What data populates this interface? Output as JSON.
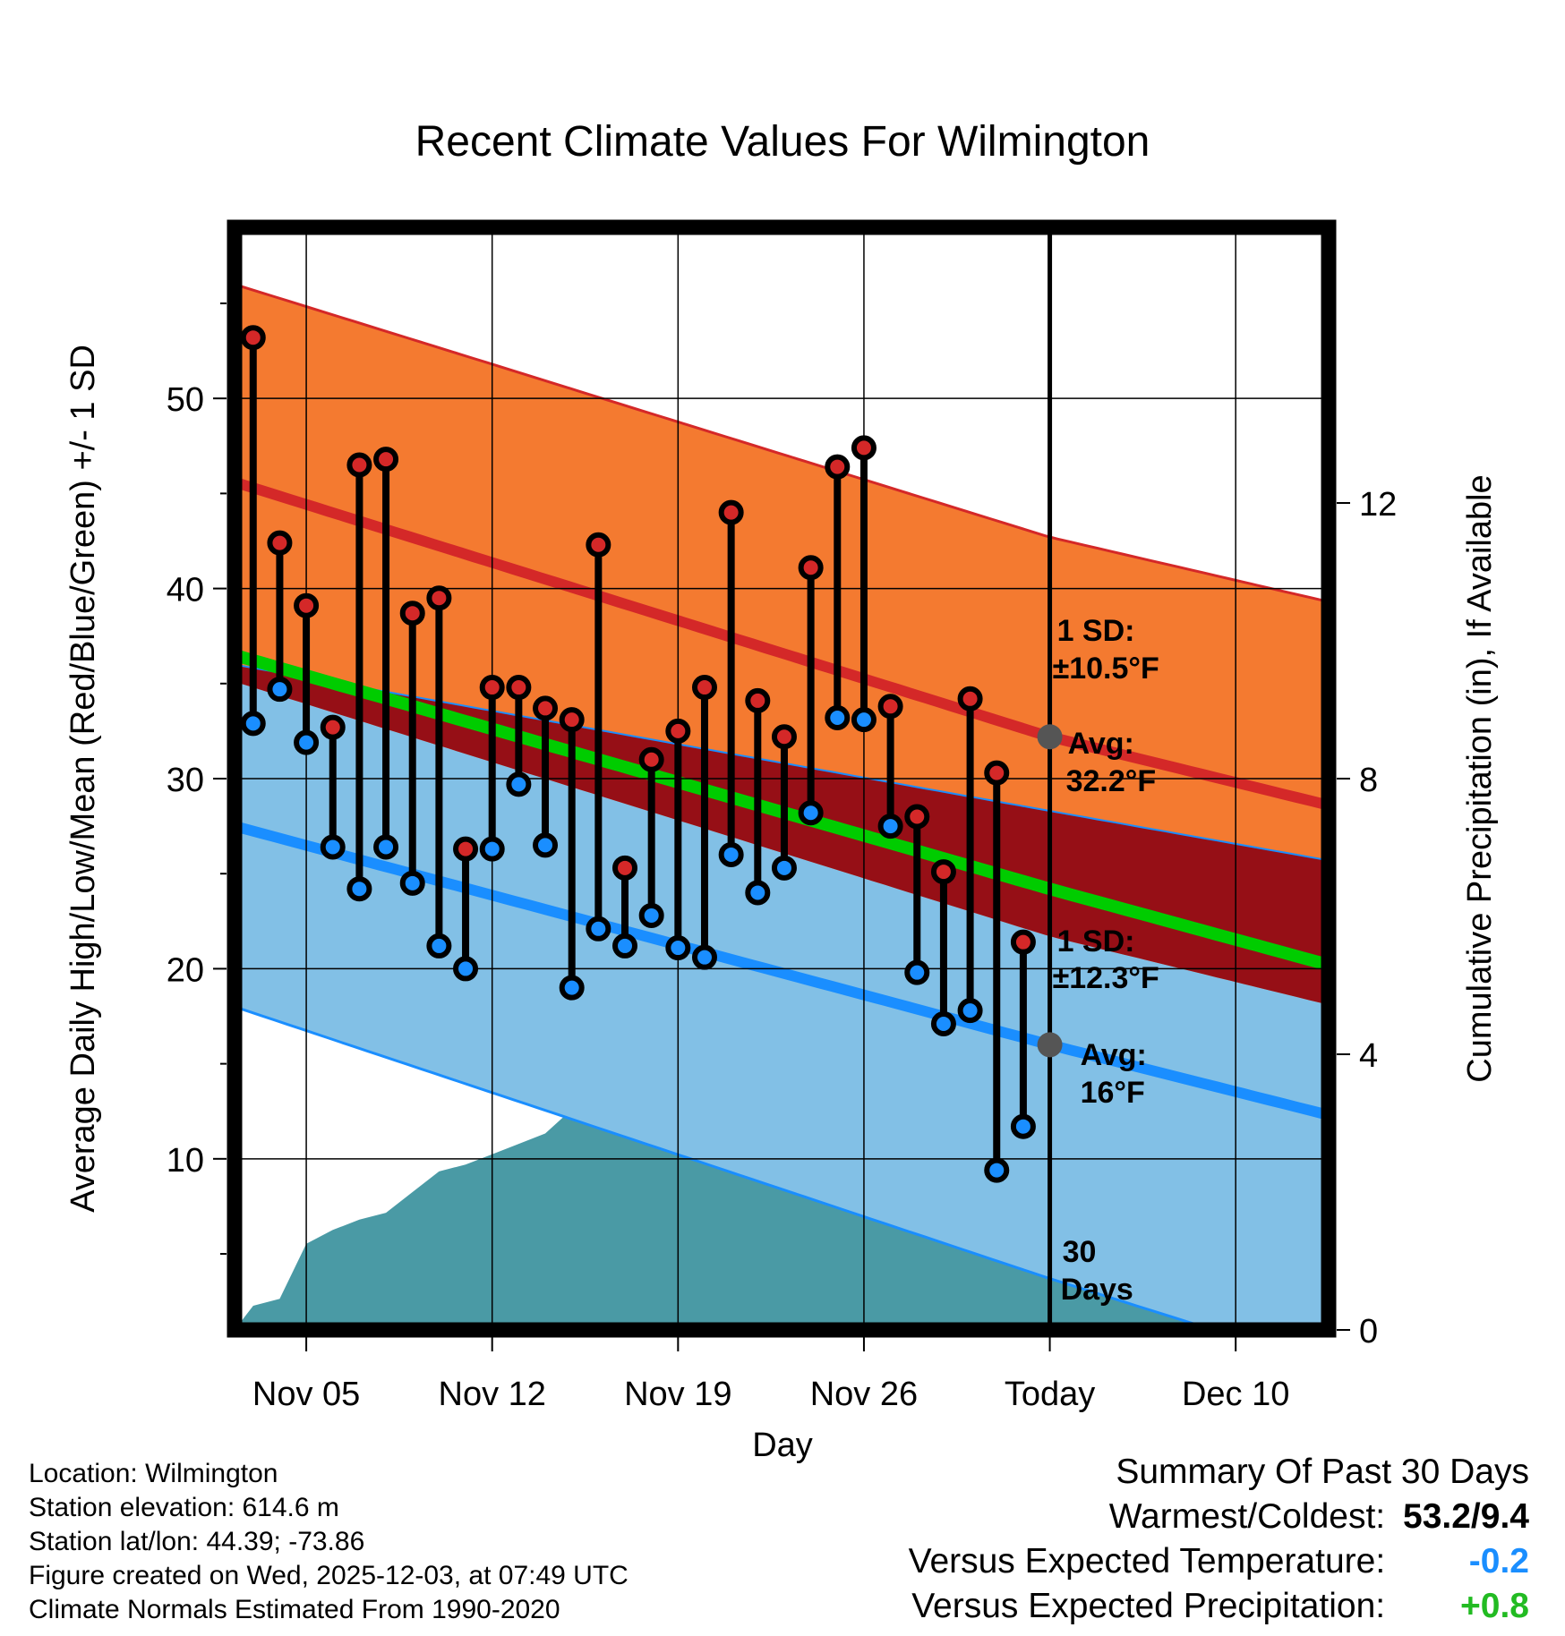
{
  "chart_data": {
    "type": "line",
    "title": "Recent Climate Values For Wilmington",
    "xlabel": "Day",
    "ylabel_left": "Average Daily High/Low/Mean (Red/Blue/Green) +/- 1 SD",
    "ylabel_right": "Cumulative Precipitation (in), If Available",
    "ylim_left": [
      1,
      59
    ],
    "ylim_right": [
      0,
      16
    ],
    "xlim": [
      0.3,
      41.5
    ],
    "x_ticks": [
      {
        "day": 3,
        "label": "Nov 05"
      },
      {
        "day": 10,
        "label": "Nov 12"
      },
      {
        "day": 17,
        "label": "Nov 19"
      },
      {
        "day": 24,
        "label": "Nov 26"
      },
      {
        "day": 31,
        "label": "Today"
      },
      {
        "day": 38,
        "label": "Dec 10"
      }
    ],
    "y_ticks_left": [
      10,
      20,
      30,
      40,
      50
    ],
    "y_ticks_right": [
      0,
      4,
      8,
      12
    ],
    "today_day": 31,
    "today_label": "30 Days",
    "normals": {
      "days": [
        0.3,
        31,
        41.5
      ],
      "high_avg": [
        45.6,
        32.2,
        28.6
      ],
      "high_plus_sd": [
        56.0,
        42.7,
        39.3
      ],
      "high_minus_sd": [
        35.1,
        21.7,
        18.1
      ],
      "mean_avg": [
        36.5,
        24.2,
        20.2
      ],
      "low_avg": [
        27.5,
        16.0,
        12.3
      ],
      "low_plus_sd": [
        36.0,
        28.3,
        25.7
      ],
      "low_minus_sd": [
        18.0,
        3.7,
        -0.9
      ]
    },
    "annotations": {
      "high_sd": "1 SD:",
      "high_sd_value": "±10.5°F",
      "high_avg": "Avg:",
      "high_avg_value": "32.2°F",
      "low_sd": "1 SD:",
      "low_sd_value": "±12.3°F",
      "low_avg": "Avg:",
      "low_avg_value": "16°F"
    },
    "series": [
      {
        "name": "Daily High",
        "color": "#d42828",
        "days": [
          1,
          2,
          3,
          4,
          5,
          6,
          7,
          8,
          9,
          10,
          11,
          12,
          13,
          14,
          15,
          16,
          17,
          18,
          19,
          20,
          21,
          22,
          23,
          24,
          25,
          26,
          27,
          28,
          29,
          30
        ],
        "values": [
          53.2,
          42.4,
          39.1,
          32.7,
          46.5,
          46.8,
          38.7,
          39.5,
          26.3,
          34.8,
          34.8,
          33.7,
          33.1,
          42.3,
          25.3,
          31.0,
          32.5,
          34.8,
          44.0,
          34.1,
          32.2,
          41.1,
          46.4,
          47.4,
          33.8,
          28.0,
          25.1,
          34.2,
          30.3,
          21.4
        ]
      },
      {
        "name": "Daily Low",
        "color": "#1a8eff",
        "days": [
          1,
          2,
          3,
          4,
          5,
          6,
          7,
          8,
          9,
          10,
          11,
          12,
          13,
          14,
          15,
          16,
          17,
          18,
          19,
          20,
          21,
          22,
          23,
          24,
          25,
          26,
          27,
          28,
          29,
          30
        ],
        "values": [
          32.9,
          34.7,
          31.9,
          26.4,
          24.2,
          26.4,
          24.5,
          21.2,
          20.0,
          26.3,
          29.7,
          26.5,
          19.0,
          22.1,
          21.2,
          22.8,
          21.1,
          20.6,
          26.0,
          24.0,
          25.3,
          28.2,
          33.2,
          33.1,
          27.5,
          19.8,
          17.1,
          17.8,
          9.4,
          11.7
        ]
      },
      {
        "name": "Cumulative Precipitation",
        "color": "#4a9aa5",
        "days": [
          0.3,
          1,
          2,
          3,
          4,
          5,
          6,
          7,
          8,
          9,
          10,
          11,
          12,
          13,
          14,
          15,
          16,
          17,
          18,
          19,
          20,
          21,
          22,
          23,
          24,
          25,
          26,
          27,
          28,
          29,
          30,
          41.5
        ],
        "values": [
          0,
          0.35,
          0.45,
          1.25,
          1.45,
          1.6,
          1.7,
          2.0,
          2.3,
          2.4,
          2.55,
          2.7,
          2.85,
          3.2,
          3.6,
          3.8,
          3.8,
          3.8,
          3.85,
          3.85,
          3.9,
          4.0,
          4.05,
          4.2,
          4.5,
          4.6,
          4.7,
          4.75,
          4.8,
          4.95,
          5.05,
          5.05
        ]
      }
    ]
  },
  "footer": {
    "location": "Location: Wilmington",
    "elevation": "Station elevation: 614.6 m",
    "latlon": "Station lat/lon: 44.39; -73.86",
    "created": "Figure created on Wed, 2025-12-03, at 07:49 UTC",
    "normals": "Climate Normals Estimated From 1990-2020"
  },
  "summary": {
    "title": "Summary Of Past 30 Days",
    "warmest_coldest_label": "Warmest/Coldest:",
    "warmest_coldest_value": "53.2/9.4",
    "temp_label": "Versus Expected Temperature:",
    "temp_value": "-0.2",
    "precip_label": "Versus Expected Precipitation:",
    "precip_value": "+0.8"
  },
  "colors": {
    "high_band": "#f47a30",
    "high_line": "#d42828",
    "overlap": "#960f16",
    "low_band": "#82c0e6",
    "low_line": "#1a8eff",
    "mean_line": "#00cc00",
    "precip": "#4a9aa5",
    "annotation": "#555555",
    "temp_value": "#1a8eff",
    "precip_value": "#22bb22"
  }
}
